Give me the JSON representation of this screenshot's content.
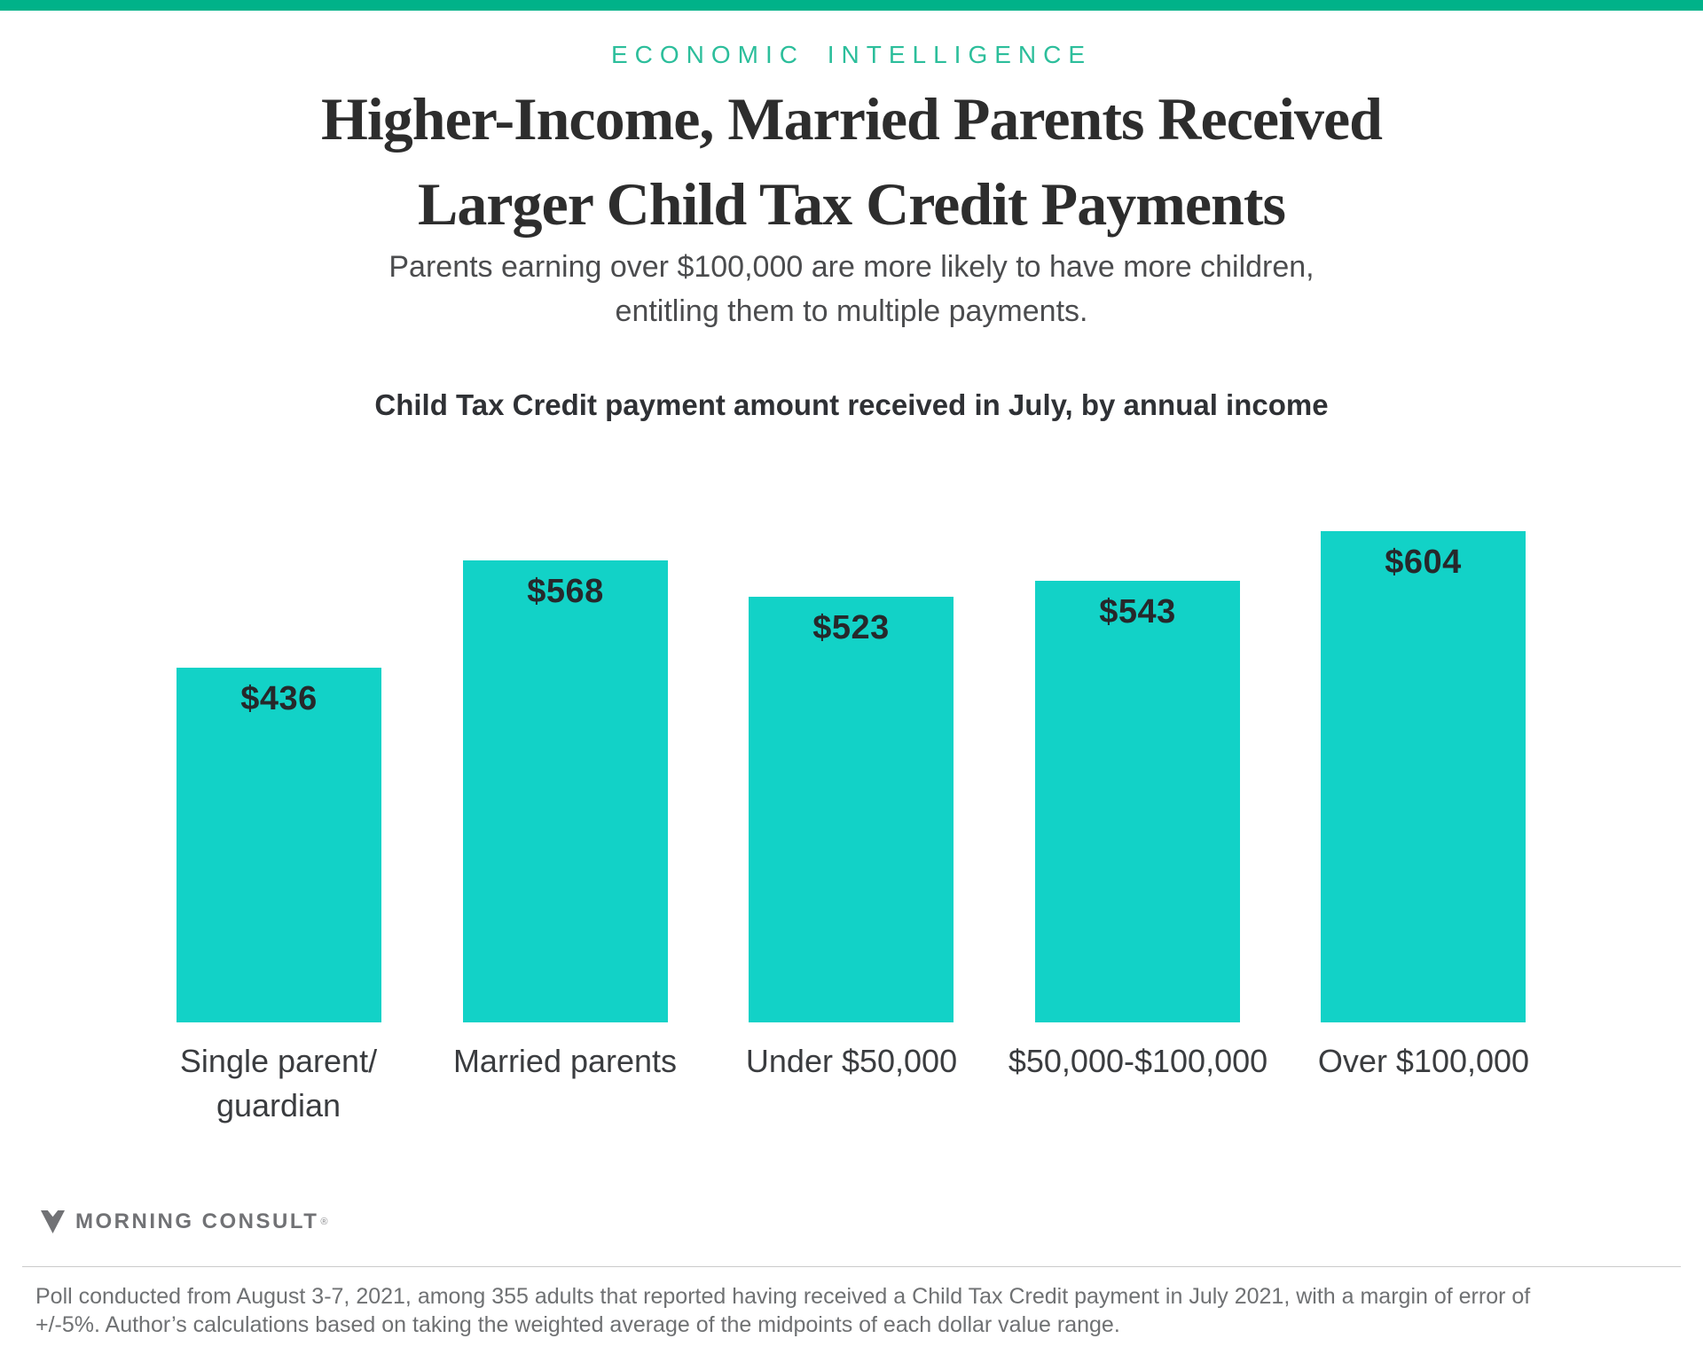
{
  "colors": {
    "topbar": "#00B289",
    "eyebrow": "#2CBE9B",
    "bar": "#12D2C7",
    "value_label": "#26282B"
  },
  "header": {
    "eyebrow": "ECONOMIC INTELLIGENCE",
    "title_line1": "Higher-Income, Married Parents Received",
    "title_line2": "Larger Child Tax Credit Payments",
    "subtitle_line1": "Parents earning over $100,000 are more likely to have more children,",
    "subtitle_line2": "entitling them to multiple payments."
  },
  "chart_data": {
    "type": "bar",
    "title": "Child Tax Credit payment amount received in July, by annual income",
    "categories": [
      "Single parent/guardian",
      "Married parents",
      "Under $50,000",
      "$50,000-$100,000",
      "Over $100,000"
    ],
    "values": [
      436,
      568,
      523,
      543,
      604
    ],
    "value_labels": [
      "$436",
      "$568",
      "$523",
      "$543",
      "$604"
    ],
    "category_lines": [
      [
        "Single parent/",
        "guardian"
      ],
      [
        "Married parents",
        ""
      ],
      [
        "Under $50,000",
        ""
      ],
      [
        "$50,000-$100,000",
        ""
      ],
      [
        "Over $100,000",
        ""
      ]
    ],
    "units": "USD",
    "xlabel": "",
    "ylabel": "",
    "ylim": [
      0,
      630
    ],
    "grid": false,
    "legend": false,
    "bar_color": "#12D2C7"
  },
  "footer": {
    "logo_text": "MORNING CONSULT",
    "logo_reg_mark": "®",
    "footnote_line1": "Poll conducted from August 3-7, 2021, among 355 adults that reported having received a Child Tax Credit payment in July 2021, with a margin of error of",
    "footnote_line2": "+/-5%. Author’s calculations based on taking the weighted average of the midpoints of each dollar value range."
  }
}
